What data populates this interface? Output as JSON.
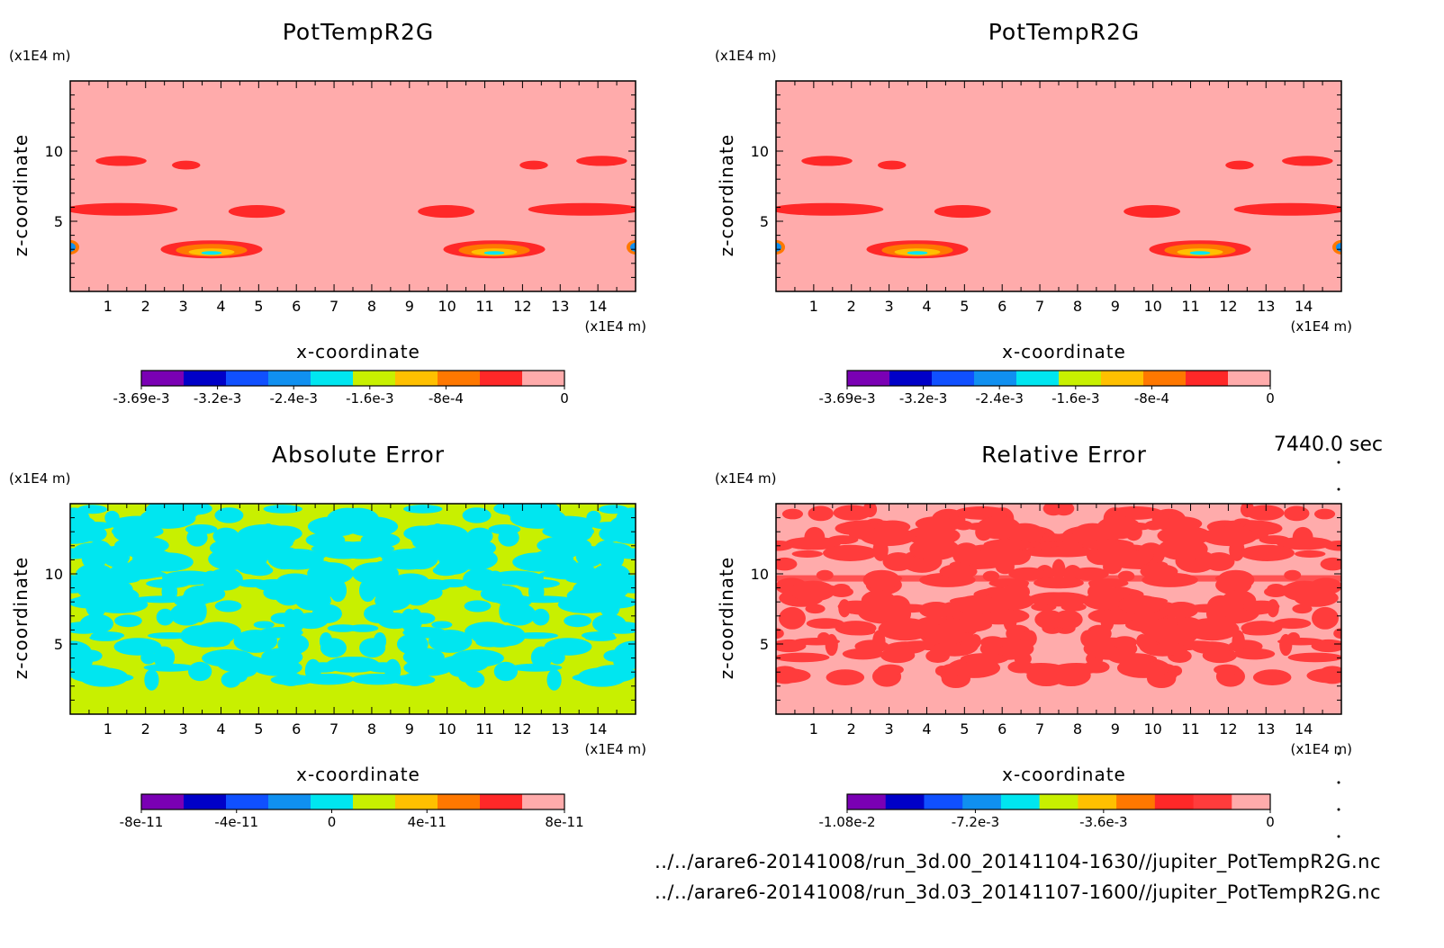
{
  "time_label": "7440.0 sec",
  "files": [
    "../../arare6-20141008/run_3d.00_20141104-1630//jupiter_PotTempR2G.nc",
    "../../arare6-20141008/run_3d.03_20141107-1600//jupiter_PotTempR2G.nc"
  ],
  "chart_data": [
    {
      "type": "heatmap",
      "title": "PotTempR2G",
      "xlabel": "x-coordinate",
      "ylabel": "z-coordinate",
      "x_unit": "(x1E4 m)",
      "y_unit": "(x1E4 m)",
      "xlim": [
        0,
        15
      ],
      "ylim": [
        0,
        15
      ],
      "x_ticks": [
        "1",
        "2",
        "3",
        "4",
        "5",
        "6",
        "7",
        "8",
        "9",
        "10",
        "11",
        "12",
        "13",
        "14"
      ],
      "y_ticks": [
        "5",
        "10"
      ],
      "background_color": "#ffabab",
      "colorbar": {
        "colors": [
          "#7a00b4",
          "#0000c8",
          "#1050ff",
          "#1090f0",
          "#00e6f0",
          "#c8f000",
          "#ffc000",
          "#ff7800",
          "#ff2828",
          "#ffabab"
        ],
        "labels": [
          "-3.69e-3",
          "-3.2e-3",
          "-2.4e-3",
          "-1.6e-3",
          "-8e-4",
          "0"
        ]
      }
    },
    {
      "type": "heatmap",
      "title": "PotTempR2G",
      "xlabel": "x-coordinate",
      "ylabel": "z-coordinate",
      "x_unit": "(x1E4 m)",
      "y_unit": "(x1E4 m)",
      "xlim": [
        0,
        15
      ],
      "ylim": [
        0,
        15
      ],
      "x_ticks": [
        "1",
        "2",
        "3",
        "4",
        "5",
        "6",
        "7",
        "8",
        "9",
        "10",
        "11",
        "12",
        "13",
        "14"
      ],
      "y_ticks": [
        "5",
        "10"
      ],
      "background_color": "#ffabab",
      "colorbar": {
        "colors": [
          "#7a00b4",
          "#0000c8",
          "#1050ff",
          "#1090f0",
          "#00e6f0",
          "#c8f000",
          "#ffc000",
          "#ff7800",
          "#ff2828",
          "#ffabab"
        ],
        "labels": [
          "-3.69e-3",
          "-3.2e-3",
          "-2.4e-3",
          "-1.6e-3",
          "-8e-4",
          "0"
        ]
      }
    },
    {
      "type": "heatmap",
      "title": "Absolute Error",
      "xlabel": "x-coordinate",
      "ylabel": "z-coordinate",
      "x_unit": "(x1E4 m)",
      "y_unit": "(x1E4 m)",
      "xlim": [
        0,
        15
      ],
      "ylim": [
        0,
        15
      ],
      "x_ticks": [
        "1",
        "2",
        "3",
        "4",
        "5",
        "6",
        "7",
        "8",
        "9",
        "10",
        "11",
        "12",
        "13",
        "14"
      ],
      "y_ticks": [
        "5",
        "10"
      ],
      "background_color": "#c8f000",
      "colorbar": {
        "colors": [
          "#7a00b4",
          "#0000c8",
          "#1050ff",
          "#1090f0",
          "#00e6f0",
          "#c8f000",
          "#ffc000",
          "#ff7800",
          "#ff2828",
          "#ffabab"
        ],
        "labels": [
          "-8e-11",
          "-4e-11",
          "0",
          "4e-11",
          "8e-11"
        ]
      }
    },
    {
      "type": "heatmap",
      "title": "Relative Error",
      "xlabel": "x-coordinate",
      "ylabel": "z-coordinate",
      "x_unit": "(x1E4 m)",
      "y_unit": "(x1E4 m)",
      "xlim": [
        0,
        15
      ],
      "ylim": [
        0,
        15
      ],
      "x_ticks": [
        "1",
        "2",
        "3",
        "4",
        "5",
        "6",
        "7",
        "8",
        "9",
        "10",
        "11",
        "12",
        "13",
        "14"
      ],
      "y_ticks": [
        "5",
        "10"
      ],
      "background_color": "#ffabab",
      "colorbar": {
        "colors": [
          "#7a00b4",
          "#0000c8",
          "#1050ff",
          "#1090f0",
          "#00e6f0",
          "#c8f000",
          "#ffc000",
          "#ff7800",
          "#ff2828",
          "#ff3c3c",
          "#ffabab"
        ],
        "labels": [
          "-1.08e-2",
          "-7.2e-3",
          "-3.6e-3",
          "0"
        ]
      }
    }
  ]
}
